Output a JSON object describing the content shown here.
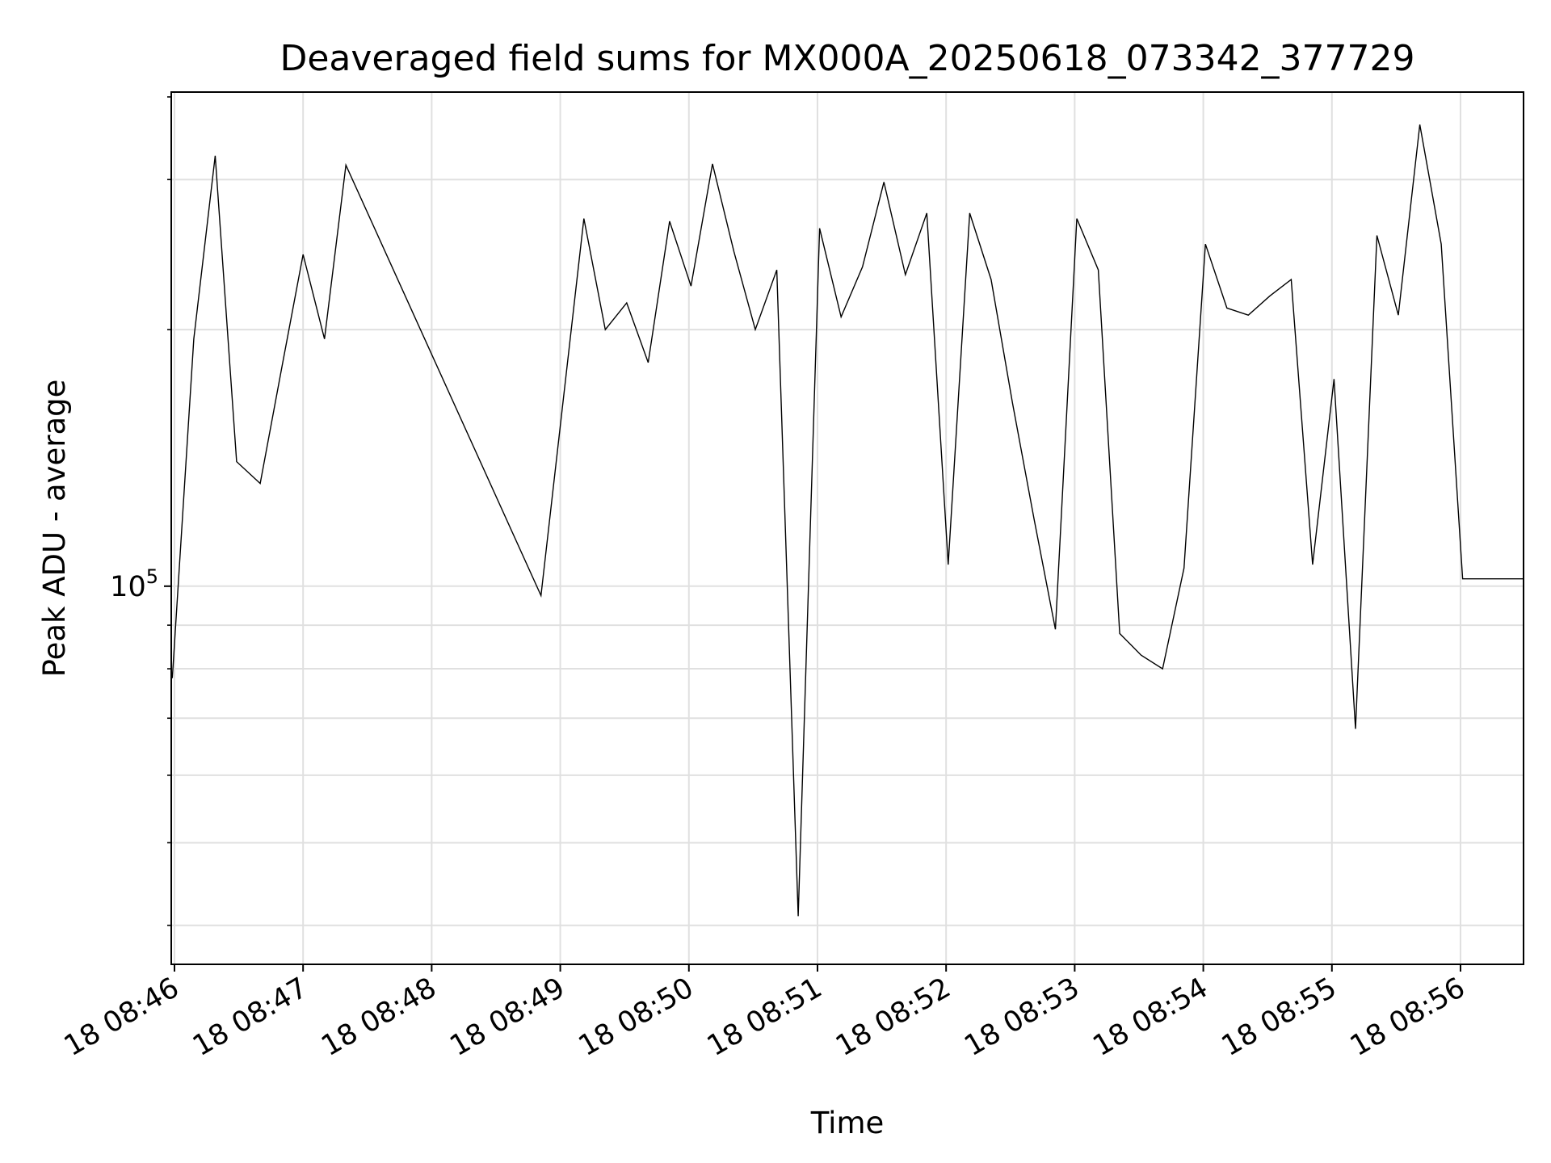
{
  "chart_data": {
    "type": "line",
    "title": "Deaveraged field sums for MX000A_20250618_073342_377729",
    "xlabel": "Time",
    "ylabel": "Peak ADU - average",
    "y_scale": "log",
    "grid": true,
    "legend": "none",
    "x_ticks": [
      "18 08:46",
      "18 08:47",
      "18 08:48",
      "18 08:49",
      "18 08:50",
      "18 08:51",
      "18 08:52",
      "18 08:53",
      "18 08:54",
      "18 08:55",
      "18 08:56"
    ],
    "y_tick_labels": [
      {
        "base": "10",
        "exp": "5",
        "value": 100000
      }
    ],
    "y_minor_ticks": [
      40000,
      50000,
      60000,
      70000,
      80000,
      90000,
      200000,
      300000
    ],
    "xlim": [
      "18 08:46",
      "18 08:56 +0.55 min"
    ],
    "ylim": [
      36000,
      380000
    ],
    "series": [
      {
        "color": "#000000",
        "x": [
          "08:45:59",
          "08:46:09",
          "08:46:19",
          "08:46:29",
          "08:46:40",
          "08:46:50",
          "08:47:00",
          "08:47:10",
          "08:47:20",
          "08:48:51",
          "08:49:11",
          "08:49:21",
          "08:49:31",
          "08:49:41",
          "08:49:51",
          "08:50:01",
          "08:50:11",
          "08:50:21",
          "08:50:31",
          "08:50:41",
          "08:50:51",
          "08:51:01",
          "08:51:11",
          "08:51:21",
          "08:51:31",
          "08:51:41",
          "08:51:51",
          "08:52:01",
          "08:52:11",
          "08:52:21",
          "08:52:31",
          "08:52:41",
          "08:52:51",
          "08:53:01",
          "08:53:11",
          "08:53:21",
          "08:53:31",
          "08:53:41",
          "08:53:51",
          "08:54:01",
          "08:54:11",
          "08:54:21",
          "08:54:31",
          "08:54:41",
          "08:54:51",
          "08:55:01",
          "08:55:11",
          "08:55:21",
          "08:55:31",
          "08:55:41",
          "08:55:51",
          "08:56:01",
          "08:56:33"
        ],
        "y": [
          78000,
          195000,
          320000,
          140000,
          132000,
          180000,
          245000,
          195000,
          312000,
          97500,
          270000,
          200000,
          215000,
          183000,
          268000,
          225000,
          313000,
          247000,
          200000,
          235000,
          41000,
          263000,
          207000,
          237000,
          298000,
          232000,
          274000,
          106000,
          274000,
          229000,
          164000,
          120000,
          89000,
          270000,
          235000,
          88000,
          83000,
          80000,
          105000,
          252000,
          212000,
          208000,
          219000,
          229000,
          106000,
          175000,
          68000,
          258000,
          208000,
          348000,
          252000,
          102000,
          102000
        ]
      }
    ]
  }
}
